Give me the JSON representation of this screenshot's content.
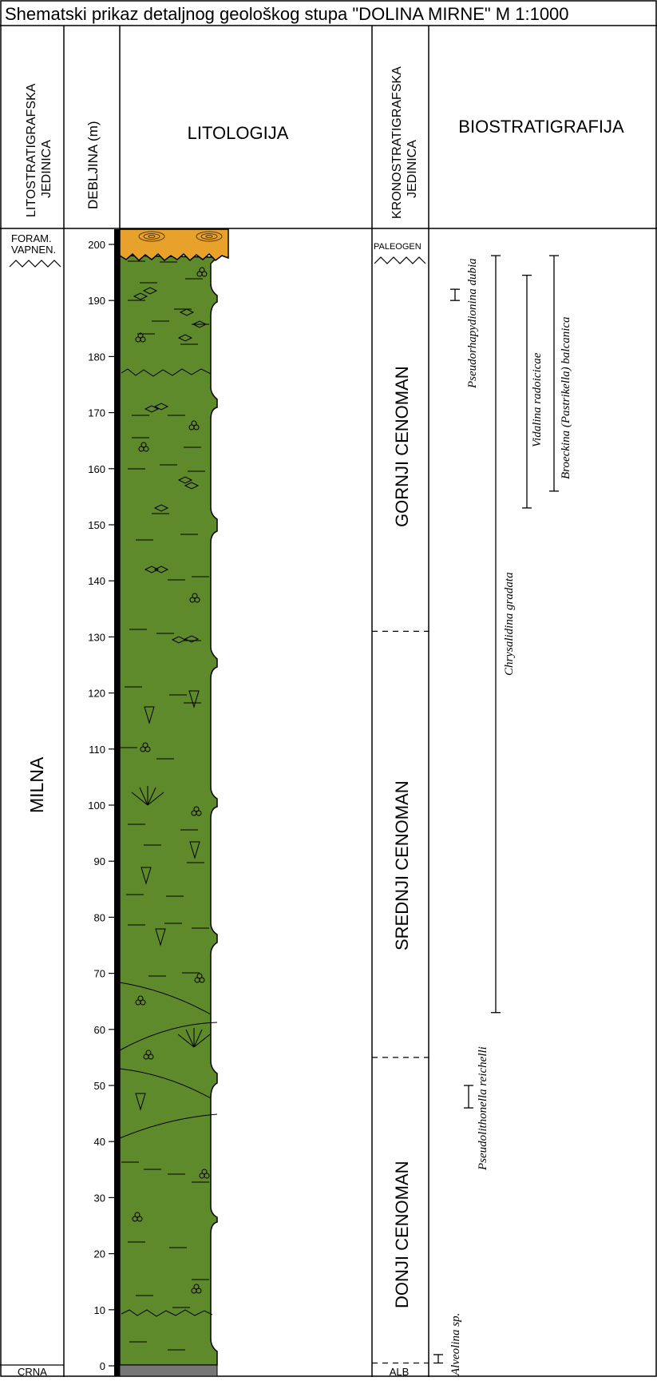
{
  "title": "Shematski prikaz detaljnog geološkog stupa \"DOLINA MIRNE\"  M 1:1000",
  "headers": {
    "litostrat": [
      "LITOSTRATIGRAFSKA",
      "JEDINICA"
    ],
    "debljina": "DEBLJINA (m)",
    "litologija": "LITOLOGIJA",
    "kronostrat": [
      "KRONOSTRATIGRAFSKA",
      "JEDINICA"
    ],
    "biostrat": "BIOSTRATIGRAFIJA"
  },
  "litho_units": {
    "top": [
      "FORAM.",
      "VAPNEN."
    ],
    "main": "MILNA",
    "bottom": "CRNA"
  },
  "depth_ticks": [
    0,
    10,
    20,
    30,
    40,
    50,
    60,
    70,
    80,
    90,
    100,
    110,
    120,
    130,
    140,
    150,
    160,
    170,
    180,
    190,
    200
  ],
  "chrono_units": {
    "paleogen": "PALEOGEN",
    "gornji": "GORNJI  CENOMAN",
    "srednji": "SREDNJI  CENOMAN",
    "donji": "DONJI  CENOMAN",
    "alb": "ALB"
  },
  "chrono_boundaries_m": [
    0.5,
    55,
    131
  ],
  "biostrat": {
    "pseudorhapydionina": {
      "name": "Pseudorhapydionina dubia",
      "range_m": [
        190,
        192
      ]
    },
    "chrysalidina": {
      "name": "Chrysalidina gradata",
      "range_m": [
        63,
        198
      ]
    },
    "vidalina": {
      "name": "Vidalina radoicicae",
      "range_m": [
        153,
        194.5
      ]
    },
    "broeckina": {
      "name": "Broeckina (Pastrikella) balcanica",
      "range_m": [
        156,
        198
      ]
    },
    "pseudolithonella": {
      "name": "Pseudolithonella reichelli",
      "range_m": [
        46,
        50
      ]
    },
    "alveolina": {
      "name": "Alveolina sp.",
      "range_m": [
        0.5,
        2
      ]
    }
  },
  "colors": {
    "limestone_green": "#5f8a2c",
    "foram_orange": "#e8a22c",
    "basal_gray": "#777777",
    "line": "#000000"
  }
}
